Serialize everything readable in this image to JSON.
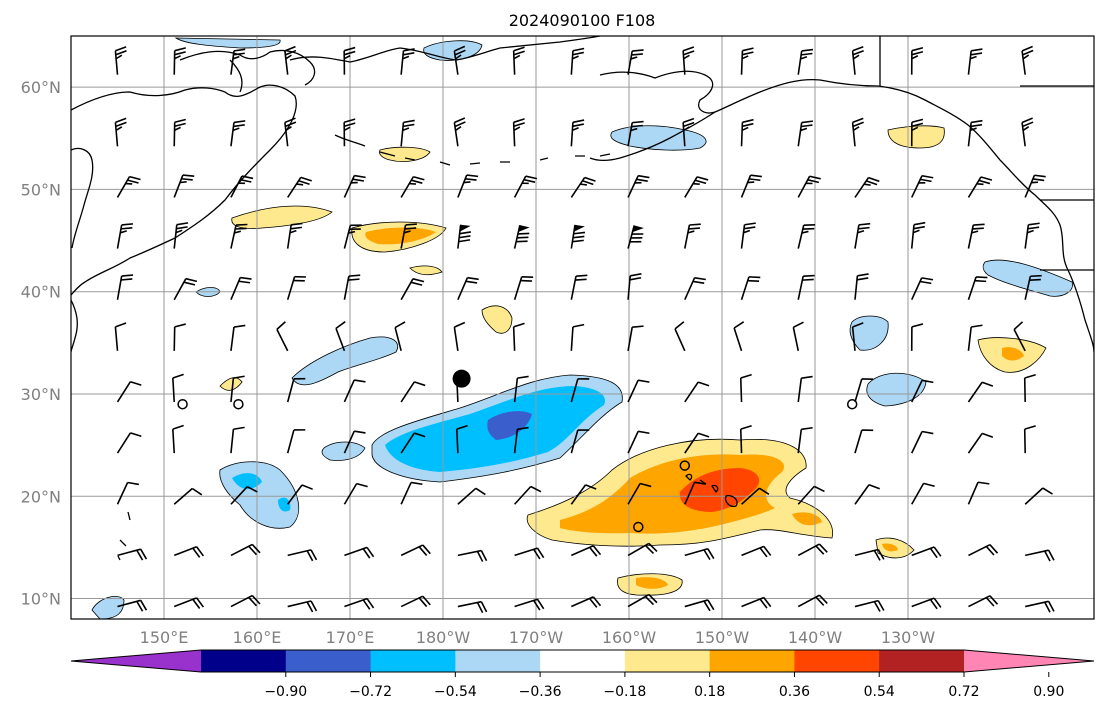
{
  "title": "2024090100 F108",
  "lon_ticks": [
    "150°E",
    "160°E",
    "170°E",
    "180°W",
    "170°W",
    "160°W",
    "150°W",
    "140°W",
    "130°W"
  ],
  "lat_ticks": [
    "60°N",
    "50°N",
    "40°N",
    "30°N",
    "20°N",
    "10°N"
  ],
  "colorbar": {
    "tick_labels": [
      "−0.90",
      "−0.72",
      "−0.54",
      "−0.36",
      "−0.18",
      "0.18",
      "0.36",
      "0.54",
      "0.72",
      "0.90"
    ],
    "colors": [
      "#9932cc",
      "#00008b",
      "#3a5fcd",
      "#00bfff",
      "#add8f5",
      "#ffffff",
      "#fee98f",
      "#ffa500",
      "#ff4500",
      "#b22222",
      "#ff85b5"
    ]
  },
  "map": {
    "projection": "PlateCarree",
    "extent_lon": [
      140,
      250
    ],
    "extent_lat": [
      8,
      65
    ],
    "field": "shaded anomaly with wind barbs",
    "storm_marker": {
      "lon": 182,
      "lat": 31.5
    },
    "station_markers": [
      {
        "lon": 152,
        "lat": 29
      },
      {
        "lon": 158,
        "lat": 29
      },
      {
        "lon": 224,
        "lat": 29
      },
      {
        "lon": 206,
        "lat": 23
      },
      {
        "lon": 201,
        "lat": 17
      }
    ]
  }
}
